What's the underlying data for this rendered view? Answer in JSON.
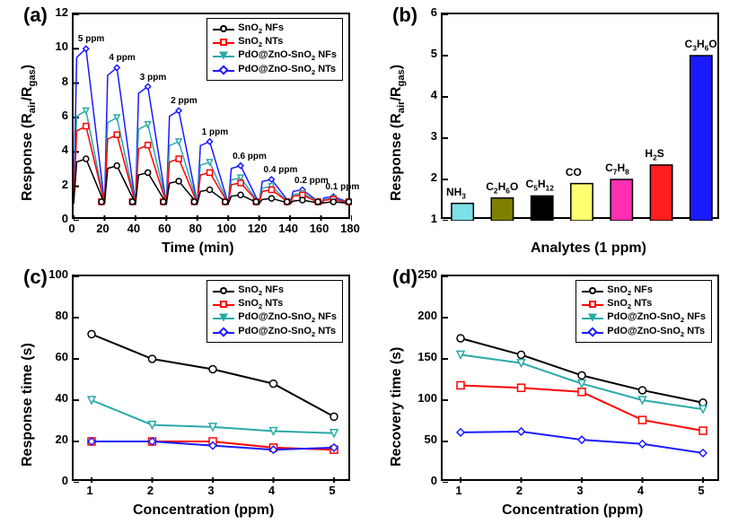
{
  "panel_a": {
    "label": "(a)",
    "type": "line",
    "xlabel": "Time (min)",
    "ylabel_html": "Response (R<sub>air</sub>/R<sub>gas</sub>)",
    "xlim": [
      0,
      180
    ],
    "ylim": [
      0,
      12
    ],
    "xtick_step": 20,
    "ytick_step": 2,
    "title_fontsize": 22,
    "label_fontsize": 16,
    "tick_fontsize": 13,
    "background_color": "#ffffff",
    "border_color": "#000000",
    "series": [
      {
        "name": "SnO₂ NFs",
        "color": "#000000",
        "marker": "circle",
        "peaks": [
          3.6,
          3.2,
          2.8,
          2.3,
          1.8,
          1.5,
          1.3,
          1.2,
          1.1
        ]
      },
      {
        "name": "SnO₂ NTs",
        "color": "#ff0000",
        "marker": "square",
        "peaks": [
          5.5,
          5.0,
          4.4,
          3.6,
          2.8,
          2.2,
          1.8,
          1.5,
          1.25
        ]
      },
      {
        "name": "PdO@ZnO-SnO₂ NFs",
        "color": "#2aa9a9",
        "marker": "tri-dn",
        "peaks": [
          6.4,
          6.0,
          5.6,
          4.6,
          3.4,
          2.5,
          2.0,
          1.6,
          1.3
        ]
      },
      {
        "name": "PdO@ZnO-SnO₂ NTs",
        "color": "#1a1aff",
        "marker": "diamond",
        "peaks": [
          10.0,
          8.9,
          7.8,
          6.4,
          4.6,
          3.2,
          2.4,
          1.8,
          1.4
        ]
      }
    ],
    "annotations": [
      "5 ppm",
      "4 ppm",
      "3 ppm",
      "2 ppm",
      "1 ppm",
      "0.6 ppm",
      "0.4 ppm",
      "0.2 ppm",
      "0.1 ppm"
    ],
    "cycle_width_min": 20,
    "baseline": 1.0
  },
  "panel_b": {
    "label": "(b)",
    "type": "bar",
    "xlabel": "Analytes (1 ppm)",
    "ylabel_html": "Response (R<sub>air</sub>/R<sub>gas</sub>)",
    "ylim": [
      1,
      6
    ],
    "ytick_step": 1,
    "title_fontsize": 22,
    "label_fontsize": 16,
    "tick_fontsize": 13,
    "categories_html": [
      "NH<sub>3</sub>",
      "C<sub>2</sub>H<sub>6</sub>O",
      "C<sub>5</sub>H<sub>12</sub>",
      "CO",
      "C<sub>7</sub>H<sub>8</sub>",
      "H<sub>2</sub>S",
      "C<sub>3</sub>H<sub>6</sub>O"
    ],
    "values": [
      1.42,
      1.55,
      1.6,
      1.9,
      2.0,
      2.35,
      5.0
    ],
    "bar_colors": [
      "#7de0e8",
      "#808000",
      "#000000",
      "#ffff72",
      "#ff2fb3",
      "#ff1f1f",
      "#1a1aff"
    ],
    "bar_border": "#000000",
    "bar_width": 0.55,
    "background_color": "#ffffff"
  },
  "panel_c": {
    "label": "(c)",
    "type": "line",
    "xlabel": "Concentration (ppm)",
    "ylabel": "Response time (s)",
    "xlim": [
      1,
      5
    ],
    "ylim": [
      0,
      100
    ],
    "xtick_step": 1,
    "ytick_step": 20,
    "title_fontsize": 22,
    "label_fontsize": 16,
    "tick_fontsize": 13,
    "series": [
      {
        "name": "SnO₂ NFs",
        "color": "#000000",
        "marker": "circle",
        "y": [
          72,
          60,
          55,
          48,
          32
        ]
      },
      {
        "name": "SnO₂ NTs",
        "color": "#ff0000",
        "marker": "square",
        "y": [
          20,
          20,
          20,
          17,
          16
        ]
      },
      {
        "name": "PdO@ZnO-SnO₂ NFs",
        "color": "#2aa9a9",
        "marker": "tri-dn",
        "y": [
          40,
          28,
          27,
          25,
          24
        ]
      },
      {
        "name": "PdO@ZnO-SnO₂ NTs",
        "color": "#1a1aff",
        "marker": "diamond",
        "y": [
          20,
          20,
          18,
          16,
          17
        ]
      }
    ],
    "x": [
      1,
      2,
      3,
      4,
      5
    ]
  },
  "panel_d": {
    "label": "(d)",
    "type": "line",
    "xlabel": "Concentration (ppm)",
    "ylabel": "Recovery time (s)",
    "xlim": [
      1,
      5
    ],
    "ylim": [
      0,
      250
    ],
    "xtick_step": 1,
    "ytick_step": 50,
    "title_fontsize": 22,
    "label_fontsize": 16,
    "tick_fontsize": 13,
    "series": [
      {
        "name": "SnO₂ NFs",
        "color": "#000000",
        "marker": "circle",
        "y": [
          175,
          155,
          130,
          112,
          97
        ]
      },
      {
        "name": "SnO₂ NTs",
        "color": "#ff0000",
        "marker": "square",
        "y": [
          118,
          115,
          110,
          76,
          63
        ]
      },
      {
        "name": "PdO@ZnO-SnO₂ NFs",
        "color": "#2aa9a9",
        "marker": "tri-dn",
        "y": [
          155,
          145,
          120,
          100,
          89
        ]
      },
      {
        "name": "PdO@ZnO-SnO₂ NTs",
        "color": "#1a1aff",
        "marker": "diamond",
        "y": [
          61,
          62,
          52,
          47,
          36
        ]
      }
    ],
    "x": [
      1,
      2,
      3,
      4,
      5
    ]
  },
  "legend_common": [
    {
      "label_html": "SnO<sub>2</sub> NFs",
      "color": "#000000",
      "marker": "circle"
    },
    {
      "label_html": "SnO<sub>2</sub> NTs",
      "color": "#ff0000",
      "marker": "square"
    },
    {
      "label_html": "PdO@ZnO-SnO<sub>2</sub> NFs",
      "color": "#2aa9a9",
      "marker": "tri-dn"
    },
    {
      "label_html": "PdO@ZnO-SnO<sub>2</sub> NTs",
      "color": "#1a1aff",
      "marker": "diamond"
    }
  ]
}
